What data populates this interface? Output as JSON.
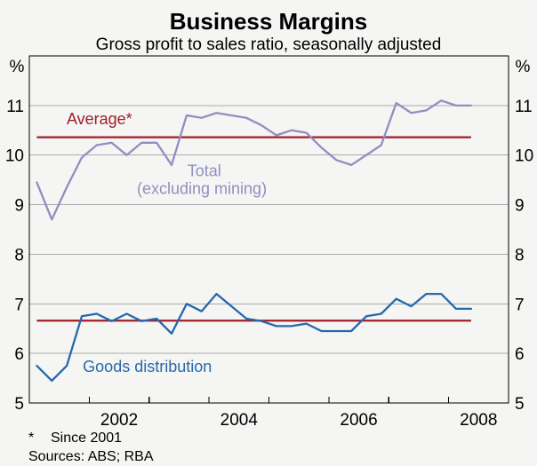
{
  "title": "Business Margins",
  "subtitle": "Gross profit to sales ratio, seasonally adjusted",
  "axes": {
    "unit_left": "%",
    "unit_right": "%"
  },
  "footnotes": {
    "marker": "*",
    "note": "Since 2001",
    "sources": "Sources: ABS; RBA"
  },
  "colors": {
    "total_line": "#8f8fc1",
    "goods_line": "#2569ae",
    "average_line": "#a01e28",
    "gridline": "#aaaaaa",
    "frame": "#000000"
  },
  "chart_data": {
    "type": "line",
    "title": "Business Margins",
    "subtitle": "Gross profit to sales ratio, seasonally adjusted",
    "ylabel": "%",
    "ylim": [
      5,
      12
    ],
    "xlim_years": [
      2001,
      2009
    ],
    "y_ticks": [
      5,
      6,
      7,
      8,
      9,
      10,
      11
    ],
    "x_tick_years": [
      2002,
      2003,
      2004,
      2005,
      2006,
      2007,
      2008
    ],
    "x_axis_labels": [
      "2002",
      "2004",
      "2006",
      "2008"
    ],
    "grid": true,
    "x_quarters": [
      "2001 Q1",
      "2001 Q2",
      "2001 Q3",
      "2001 Q4",
      "2002 Q1",
      "2002 Q2",
      "2002 Q3",
      "2002 Q4",
      "2003 Q1",
      "2003 Q2",
      "2003 Q3",
      "2003 Q4",
      "2004 Q1",
      "2004 Q2",
      "2004 Q3",
      "2004 Q4",
      "2005 Q1",
      "2005 Q2",
      "2005 Q3",
      "2005 Q4",
      "2006 Q1",
      "2006 Q2",
      "2006 Q3",
      "2006 Q4",
      "2007 Q1",
      "2007 Q2",
      "2007 Q3",
      "2007 Q4",
      "2008 Q1",
      "2008 Q2"
    ],
    "series": [
      {
        "name": "Total (excluding mining)",
        "color": "#8f8fc1",
        "values": [
          9.45,
          8.7,
          9.35,
          9.95,
          10.2,
          10.25,
          10.0,
          10.25,
          10.25,
          9.8,
          10.8,
          10.75,
          10.85,
          10.8,
          10.75,
          10.6,
          10.4,
          10.5,
          10.45,
          10.15,
          9.9,
          9.8,
          10.0,
          10.2,
          11.05,
          10.85,
          10.9,
          11.1,
          11.0,
          11.0
        ]
      },
      {
        "name": "Goods distribution",
        "color": "#2569ae",
        "values": [
          5.75,
          5.45,
          5.75,
          6.75,
          6.8,
          6.65,
          6.8,
          6.65,
          6.7,
          6.4,
          7.0,
          6.85,
          7.2,
          6.95,
          6.7,
          6.65,
          6.55,
          6.55,
          6.6,
          6.45,
          6.45,
          6.45,
          6.75,
          6.8,
          7.1,
          6.95,
          7.2,
          7.2,
          6.9,
          6.9
        ]
      }
    ],
    "average_lines": [
      {
        "label": "Average*",
        "series": "Total (excluding mining)",
        "value": 10.36,
        "color": "#a01e28"
      },
      {
        "label": "Average*",
        "series": "Goods distribution",
        "value": 6.66,
        "color": "#a01e28"
      }
    ],
    "annotations": [
      {
        "text": "Average*",
        "year": 2002.17,
        "value": 10.73,
        "color": "#a01e28"
      },
      {
        "text": "Total",
        "year": 2003.92,
        "value": 9.68,
        "color": "#8f8fc1"
      },
      {
        "text": "(excluding mining)",
        "year": 2003.88,
        "value": 9.32,
        "color": "#8f8fc1"
      },
      {
        "text": "Goods distribution",
        "year": 2002.97,
        "value": 5.73,
        "color": "#2569ae"
      }
    ],
    "legend_position": "inline-labels"
  }
}
